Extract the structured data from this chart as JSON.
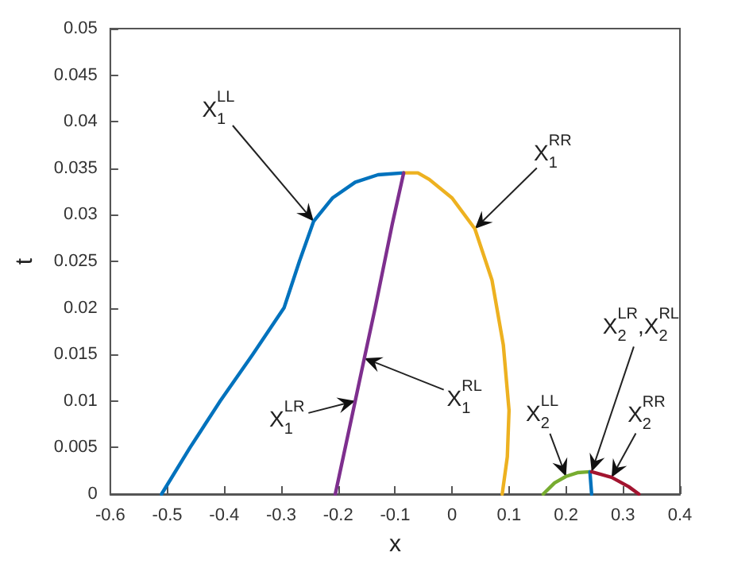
{
  "chart_data": {
    "type": "line",
    "xlabel": "x",
    "ylabel": "t",
    "xlim": [
      -0.6,
      0.4
    ],
    "ylim": [
      0,
      0.05
    ],
    "xticks": [
      -0.6,
      -0.5,
      -0.4,
      -0.3,
      -0.2,
      -0.1,
      0,
      0.1,
      0.2,
      0.3,
      0.4
    ],
    "yticks": [
      0,
      0.005,
      0.01,
      0.015,
      0.02,
      0.025,
      0.03,
      0.035,
      0.04,
      0.045,
      0.05
    ],
    "grid": false,
    "marker": "none",
    "line_style": "solid",
    "series": [
      {
        "color": "#0072bd",
        "x": [
          -0.51,
          -0.46,
          -0.407,
          -0.35,
          -0.295,
          -0.268,
          -0.243,
          -0.21,
          -0.17,
          -0.13,
          -0.085
        ],
        "values": [
          0,
          0.005,
          0.01,
          0.015,
          0.02,
          0.025,
          0.0293,
          0.0318,
          0.0335,
          0.0343,
          0.0345
        ]
      },
      {
        "color": "#edb120",
        "x": [
          -0.085,
          -0.06,
          -0.04,
          0,
          0.04,
          0.07,
          0.09,
          0.1,
          0.097,
          0.088
        ],
        "values": [
          0.0345,
          0.0345,
          0.0338,
          0.0318,
          0.0285,
          0.023,
          0.016,
          0.009,
          0.004,
          0
        ]
      },
      {
        "color": "#7e2f8e",
        "x": [
          -0.205,
          -0.17,
          -0.154,
          -0.135,
          -0.105,
          -0.085
        ],
        "values": [
          0,
          0.01,
          0.0146,
          0.02,
          0.029,
          0.0345
        ]
      },
      {
        "color": "#77ac30",
        "x": [
          0.16,
          0.18,
          0.2,
          0.22,
          0.242
        ],
        "values": [
          0,
          0.0012,
          0.0019,
          0.0023,
          0.0024
        ]
      },
      {
        "color": "#0072bd",
        "x": [
          0.245,
          0.242
        ],
        "values": [
          0,
          0.0024
        ]
      },
      {
        "color": "#a2142f",
        "x": [
          0.245,
          0.28,
          0.31,
          0.328
        ],
        "values": [
          0.0024,
          0.0018,
          0.0008,
          0
        ]
      }
    ],
    "annotations": [
      {
        "text": "X$_{1}$$^{LL}$",
        "x": -0.243,
        "y": 0.0293
      },
      {
        "text": "X$_{1}$$^{RR}$",
        "x": 0.04,
        "y": 0.0285
      },
      {
        "text": "X$_{1}$$^{LR}$",
        "x": -0.17,
        "y": 0.01
      },
      {
        "text": "X$_{1}$$^{RL}$",
        "x": -0.154,
        "y": 0.0146
      },
      {
        "text": "X$_{2}$$^{LL}$",
        "x": 0.2,
        "y": 0.0019
      },
      {
        "text": "X$_{2}$$^{LR}$,X$_{2}$$^{RL}$",
        "x": 0.245,
        "y": 0.0024
      },
      {
        "text": "X$_{2}$$^{RR}$",
        "x": 0.28,
        "y": 0.0018
      }
    ]
  }
}
